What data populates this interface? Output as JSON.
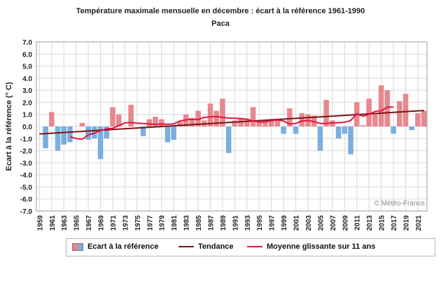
{
  "chart_data": {
    "type": "bar",
    "title": "Température maximale mensuelle en décembre : écart à la référence 1961-1990",
    "subtitle": "Paca",
    "ylabel": "Ecart à la référence (° C)",
    "xlabel": "",
    "ylim": [
      -7.0,
      7.0
    ],
    "yticks": [
      "7.0",
      "6.0",
      "5.0",
      "4.0",
      "3.0",
      "2.0",
      "1.0",
      "0.0",
      "-1.0",
      "-2.0",
      "-3.0",
      "-4.0",
      "-5.0",
      "-6.0",
      "-7.0"
    ],
    "xticks": [
      "1959",
      "1961",
      "1963",
      "1965",
      "1967",
      "1969",
      "1971",
      "1973",
      "1975",
      "1977",
      "1979",
      "1981",
      "1983",
      "1985",
      "1987",
      "1989",
      "1991",
      "1993",
      "1995",
      "1997",
      "1999",
      "2001",
      "2003",
      "2005",
      "2007",
      "2009",
      "2011",
      "2013",
      "2015",
      "2017",
      "2019",
      "2021"
    ],
    "grid": true,
    "legend_position": "bottom",
    "years": [
      1959,
      1960,
      1961,
      1962,
      1963,
      1964,
      1965,
      1966,
      1967,
      1968,
      1969,
      1970,
      1971,
      1972,
      1973,
      1974,
      1975,
      1976,
      1977,
      1978,
      1979,
      1980,
      1981,
      1982,
      1983,
      1984,
      1985,
      1986,
      1987,
      1988,
      1989,
      1990,
      1991,
      1992,
      1993,
      1994,
      1995,
      1996,
      1997,
      1998,
      1999,
      2000,
      2001,
      2002,
      2003,
      2004,
      2005,
      2006,
      2007,
      2008,
      2009,
      2010,
      2011,
      2012,
      2013,
      2014,
      2015,
      2016,
      2017,
      2018,
      2019,
      2020,
      2021,
      2022
    ],
    "series": [
      {
        "name": "Ecart à la référence",
        "values": [
          null,
          -1.8,
          1.2,
          -2.0,
          -1.5,
          -1.3,
          0.0,
          0.3,
          -1.1,
          -1.0,
          -2.7,
          -1.0,
          1.6,
          1.0,
          0.0,
          1.8,
          0.0,
          -0.8,
          0.6,
          0.8,
          0.6,
          -1.3,
          -1.1,
          0.4,
          1.0,
          0.7,
          1.3,
          0.5,
          1.9,
          1.3,
          2.3,
          -2.2,
          0.5,
          0.7,
          0.6,
          1.6,
          0.3,
          0.4,
          0.6,
          0.5,
          -0.6,
          1.5,
          -0.6,
          1.1,
          1.0,
          0.9,
          -2.0,
          2.2,
          0.5,
          -1.0,
          -0.6,
          -2.3,
          2.0,
          0.1,
          2.3,
          1.0,
          3.4,
          3.0,
          -0.6,
          2.1,
          2.7,
          -0.3,
          1.1,
          1.3
        ]
      },
      {
        "name": "Tendance",
        "values": [
          -0.62,
          1.32
        ]
      },
      {
        "name": "Moyenne glissante sur 11 ans",
        "values": [
          null,
          null,
          null,
          null,
          null,
          -0.85,
          -1.0,
          -1.05,
          -0.7,
          -0.55,
          -0.35,
          -0.2,
          -0.15,
          0.05,
          0.3,
          0.32,
          0.28,
          0.25,
          0.2,
          0.18,
          0.2,
          0.18,
          0.22,
          0.45,
          0.55,
          0.6,
          0.58,
          0.75,
          0.8,
          0.82,
          0.75,
          0.7,
          0.68,
          0.65,
          0.6,
          0.45,
          0.35,
          0.38,
          0.48,
          0.55,
          0.45,
          0.2,
          0.25,
          0.45,
          0.5,
          0.4,
          0.25,
          0.25,
          0.3,
          0.3,
          0.35,
          0.5,
          1.05,
          0.85,
          1.0,
          1.25,
          1.3,
          1.6,
          1.6,
          null,
          null,
          null,
          null,
          null
        ]
      }
    ],
    "colors": {
      "positive": "#e8878e",
      "negative": "#7aafdf",
      "trend": "#7a1515",
      "moving_average": "#e51440",
      "grid": "#d9d9d9"
    },
    "annotation": "© Météo-France"
  },
  "legend": {
    "bars": "Ecart à la référence",
    "trend": "Tendance",
    "moving": "Moyenne glissante sur 11 ans"
  }
}
